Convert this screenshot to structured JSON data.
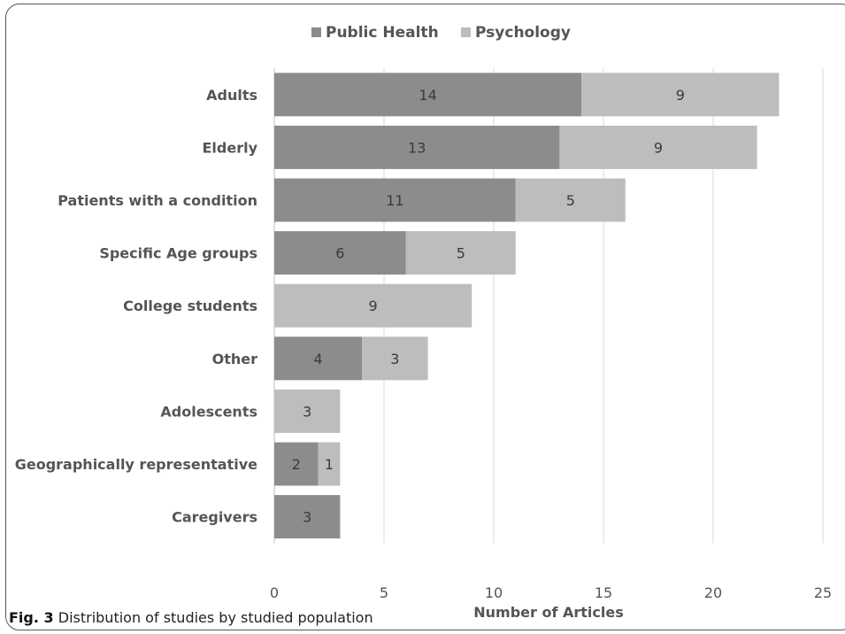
{
  "caption": {
    "label": "Fig. 3",
    "text": "Distribution of studies by studied population"
  },
  "chart_data": {
    "type": "bar",
    "orientation": "horizontal",
    "stacked": true,
    "categories": [
      "Adults",
      "Elderly",
      "Patients with a condition",
      "Specific Age groups",
      "College students",
      "Other",
      "Adolescents",
      "Geographically representative",
      "Caregivers"
    ],
    "series": [
      {
        "name": "Public Health",
        "color": "#8c8c8c",
        "values": [
          14,
          13,
          11,
          6,
          0,
          4,
          0,
          2,
          3
        ]
      },
      {
        "name": "Psychology",
        "color": "#bdbdbd",
        "values": [
          9,
          9,
          5,
          5,
          9,
          3,
          3,
          1,
          0
        ]
      }
    ],
    "xlabel": "Number of Articles",
    "ylabel": "",
    "xlim": [
      0,
      25
    ],
    "xticks": [
      0,
      5,
      10,
      15,
      20,
      25
    ],
    "grid": true,
    "legend": "top-center"
  }
}
